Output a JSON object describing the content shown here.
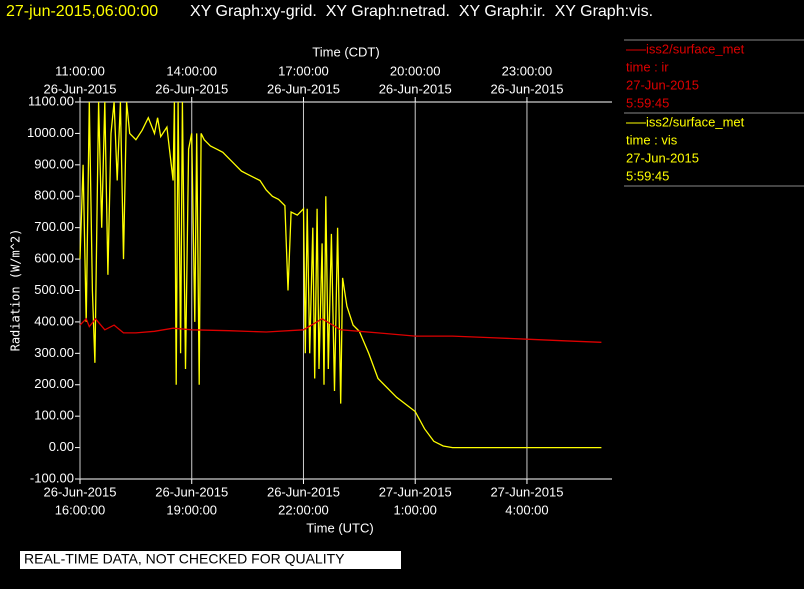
{
  "chart_data": {
    "type": "line",
    "header": {
      "timestamp": "27-jun-2015,06:00:00",
      "graphs": "XY Graph:xy-grid.  XY Graph:netrad.  XY Graph:ir.  XY Graph:vis."
    },
    "xlabel": "Time (UTC)",
    "x2label": "Time (CDT)",
    "ylabel": "Radiation (W/m^2)",
    "footer": "REAL-TIME DATA, NOT CHECKED FOR QUALITY",
    "grid": true,
    "xlim": [
      "2015-06-26T16:00",
      "2015-06-27T06:17"
    ],
    "xticks": [
      {
        "value": "2015-06-26T16:00",
        "label": [
          "26-Jun-2015",
          "16:00:00"
        ]
      },
      {
        "value": "2015-06-26T19:00",
        "label": [
          "26-Jun-2015",
          "19:00:00"
        ]
      },
      {
        "value": "2015-06-26T22:00",
        "label": [
          "26-Jun-2015",
          "22:00:00"
        ]
      },
      {
        "value": "2015-06-27T01:00",
        "label": [
          "27-Jun-2015",
          "1:00:00"
        ]
      },
      {
        "value": "2015-06-27T04:00",
        "label": [
          "27-Jun-2015",
          "4:00:00"
        ]
      }
    ],
    "x2ticks": [
      {
        "value": "2015-06-26T16:00",
        "label": [
          "11:00:00",
          "26-Jun-2015"
        ]
      },
      {
        "value": "2015-06-26T19:00",
        "label": [
          "14:00:00",
          "26-Jun-2015"
        ]
      },
      {
        "value": "2015-06-26T22:00",
        "label": [
          "17:00:00",
          "26-Jun-2015"
        ]
      },
      {
        "value": "2015-06-27T01:00",
        "label": [
          "20:00:00",
          "26-Jun-2015"
        ]
      },
      {
        "value": "2015-06-27T04:00",
        "label": [
          "23:00:00",
          "26-Jun-2015"
        ]
      }
    ],
    "ylim": [
      -100,
      1100
    ],
    "yticks": [
      {
        "value": -100,
        "label": "-100.00"
      },
      {
        "value": 0,
        "label": "0.00"
      },
      {
        "value": 100,
        "label": "100.00"
      },
      {
        "value": 200,
        "label": "200.00"
      },
      {
        "value": 300,
        "label": "300.00"
      },
      {
        "value": 400,
        "label": "400.00"
      },
      {
        "value": 500,
        "label": "500.00"
      },
      {
        "value": 600,
        "label": "600.00"
      },
      {
        "value": 700,
        "label": "700.00"
      },
      {
        "value": 800,
        "label": "800.00"
      },
      {
        "value": 900,
        "label": "900.00"
      },
      {
        "value": 1000,
        "label": "1000.00"
      },
      {
        "value": 1100,
        "label": "1100.00"
      }
    ],
    "series": [
      {
        "name": "iss2/surface_met",
        "field": "time : ir",
        "date": "27-Jun-2015",
        "time": "5:59:45",
        "color": "#dd0000",
        "x": [
          "2015-06-26T16:00",
          "2015-06-26T16:10",
          "2015-06-26T16:15",
          "2015-06-26T16:25",
          "2015-06-26T16:40",
          "2015-06-26T16:55",
          "2015-06-26T17:10",
          "2015-06-26T17:30",
          "2015-06-26T18:00",
          "2015-06-26T18:30",
          "2015-06-26T19:00",
          "2015-06-26T20:00",
          "2015-06-26T21:00",
          "2015-06-26T22:00",
          "2015-06-26T22:30",
          "2015-06-26T23:00",
          "2015-06-26T23:30",
          "2015-06-27T00:00",
          "2015-06-27T01:00",
          "2015-06-27T02:00",
          "2015-06-27T03:00",
          "2015-06-27T04:00",
          "2015-06-27T05:00",
          "2015-06-27T06:00"
        ],
        "values": [
          390,
          410,
          385,
          410,
          375,
          390,
          365,
          365,
          370,
          380,
          375,
          372,
          368,
          375,
          410,
          375,
          370,
          365,
          355,
          355,
          350,
          345,
          340,
          335
        ]
      },
      {
        "name": "iss2/surface_met",
        "field": "time : vis",
        "date": "27-Jun-2015",
        "time": "5:59:45",
        "color": "#ffff00",
        "x": [
          "2015-06-26T16:00",
          "2015-06-26T16:05",
          "2015-06-26T16:10",
          "2015-06-26T16:15",
          "2015-06-26T16:20",
          "2015-06-26T16:24",
          "2015-06-26T16:30",
          "2015-06-26T16:35",
          "2015-06-26T16:40",
          "2015-06-26T16:45",
          "2015-06-26T16:50",
          "2015-06-26T16:55",
          "2015-06-26T17:00",
          "2015-06-26T17:05",
          "2015-06-26T17:10",
          "2015-06-26T17:15",
          "2015-06-26T17:20",
          "2015-06-26T17:30",
          "2015-06-26T17:40",
          "2015-06-26T17:50",
          "2015-06-26T18:00",
          "2015-06-26T18:05",
          "2015-06-26T18:10",
          "2015-06-26T18:20",
          "2015-06-26T18:30",
          "2015-06-26T18:32",
          "2015-06-26T18:35",
          "2015-06-26T18:38",
          "2015-06-26T18:42",
          "2015-06-26T18:45",
          "2015-06-26T18:50",
          "2015-06-26T18:55",
          "2015-06-26T19:00",
          "2015-06-26T19:05",
          "2015-06-26T19:08",
          "2015-06-26T19:12",
          "2015-06-26T19:15",
          "2015-06-26T19:20",
          "2015-06-26T19:30",
          "2015-06-26T19:40",
          "2015-06-26T19:50",
          "2015-06-26T20:00",
          "2015-06-26T20:10",
          "2015-06-26T20:20",
          "2015-06-26T20:30",
          "2015-06-26T20:40",
          "2015-06-26T20:50",
          "2015-06-26T21:00",
          "2015-06-26T21:10",
          "2015-06-26T21:20",
          "2015-06-26T21:30",
          "2015-06-26T21:35",
          "2015-06-26T21:40",
          "2015-06-26T21:50",
          "2015-06-26T22:00",
          "2015-06-26T22:03",
          "2015-06-26T22:06",
          "2015-06-26T22:10",
          "2015-06-26T22:15",
          "2015-06-26T22:18",
          "2015-06-26T22:22",
          "2015-06-26T22:25",
          "2015-06-26T22:30",
          "2015-06-26T22:33",
          "2015-06-26T22:36",
          "2015-06-26T22:40",
          "2015-06-26T22:45",
          "2015-06-26T22:50",
          "2015-06-26T22:55",
          "2015-06-26T23:00",
          "2015-06-26T23:03",
          "2015-06-26T23:10",
          "2015-06-26T23:20",
          "2015-06-26T23:30",
          "2015-06-26T23:45",
          "2015-06-27T00:00",
          "2015-06-27T00:30",
          "2015-06-27T01:00",
          "2015-06-27T01:15",
          "2015-06-27T01:30",
          "2015-06-27T01:45",
          "2015-06-27T02:00",
          "2015-06-27T03:00",
          "2015-06-27T04:00",
          "2015-06-27T05:00",
          "2015-06-27T06:00"
        ],
        "values": [
          600,
          900,
          400,
          1100,
          500,
          270,
          1100,
          700,
          1100,
          550,
          1000,
          1100,
          850,
          1100,
          600,
          1100,
          1000,
          980,
          1010,
          1050,
          1000,
          1050,
          990,
          1020,
          850,
          1100,
          200,
          1100,
          300,
          1100,
          250,
          950,
          1000,
          400,
          1000,
          200,
          1000,
          980,
          960,
          950,
          940,
          920,
          900,
          880,
          870,
          860,
          850,
          820,
          800,
          790,
          770,
          500,
          750,
          740,
          760,
          300,
          760,
          300,
          700,
          220,
          760,
          250,
          650,
          200,
          800,
          250,
          680,
          180,
          700,
          140,
          540,
          450,
          390,
          370,
          300,
          220,
          160,
          115,
          60,
          20,
          5,
          0,
          0,
          0,
          0,
          0
        ]
      }
    ]
  }
}
